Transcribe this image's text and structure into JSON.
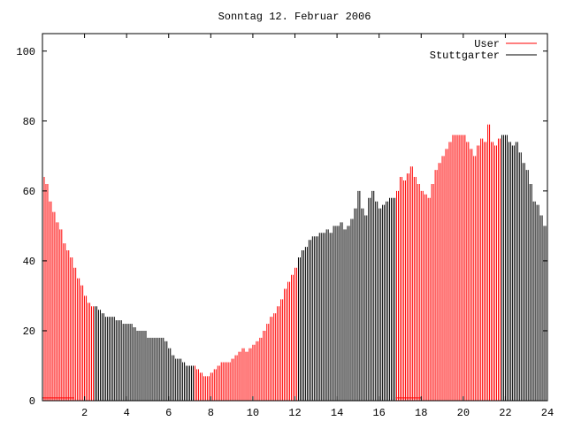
{
  "chart_data": {
    "type": "bar",
    "style": "impulses",
    "title": "Sonntag 12. Februar 2006",
    "xlabel": "",
    "ylabel": "",
    "xlim": [
      0,
      24
    ],
    "ylim": [
      0,
      105
    ],
    "x_ticks": [
      2,
      4,
      6,
      8,
      10,
      12,
      14,
      16,
      18,
      20,
      22,
      24
    ],
    "y_ticks": [
      0,
      20,
      40,
      60,
      80,
      100
    ],
    "x_start": 0,
    "x_step_hours": 0.16667,
    "values": [
      64,
      62,
      57,
      54,
      51,
      49,
      45,
      43,
      41,
      38,
      35,
      33,
      30,
      28,
      27,
      27,
      26,
      25,
      24,
      24,
      24,
      23,
      23,
      22,
      22,
      22,
      21,
      20,
      20,
      20,
      18,
      18,
      18,
      18,
      18,
      17,
      15,
      13,
      12,
      12,
      11,
      10,
      10,
      10,
      9,
      8,
      7,
      7,
      8,
      9,
      10,
      11,
      11,
      11,
      12,
      13,
      14,
      15,
      14,
      15,
      16,
      17,
      18,
      20,
      22,
      24,
      25,
      27,
      29,
      32,
      34,
      36,
      38,
      41,
      43,
      44,
      46,
      47,
      47,
      48,
      48,
      49,
      48,
      50,
      50,
      51,
      49,
      50,
      52,
      55,
      60,
      55,
      53,
      58,
      60,
      57,
      55,
      56,
      57,
      58,
      58,
      60,
      64,
      63,
      65,
      67,
      64,
      62,
      60,
      59,
      58,
      62,
      66,
      68,
      70,
      72,
      74,
      76,
      76,
      76,
      76,
      74,
      72,
      70,
      73,
      75,
      74,
      79,
      74,
      73,
      75,
      76,
      76,
      74,
      73,
      74,
      71,
      68,
      66,
      62,
      57,
      56,
      53,
      50,
      48
    ],
    "legend_position": "top-right",
    "series": [
      {
        "name": "User",
        "color": "#ff0000",
        "ranges": [
          [
            0,
            2.5
          ],
          [
            7.2,
            12.1
          ],
          [
            16.8,
            21.8
          ]
        ],
        "baseline_ranges": [
          [
            0,
            1.5
          ],
          [
            16.8,
            18
          ]
        ],
        "baseline_value": 0.8
      },
      {
        "name": "Stuttgarter",
        "color": "#000000",
        "ranges": [
          [
            2.5,
            7.2
          ],
          [
            12.1,
            16.8
          ],
          [
            21.8,
            24
          ]
        ]
      }
    ]
  }
}
